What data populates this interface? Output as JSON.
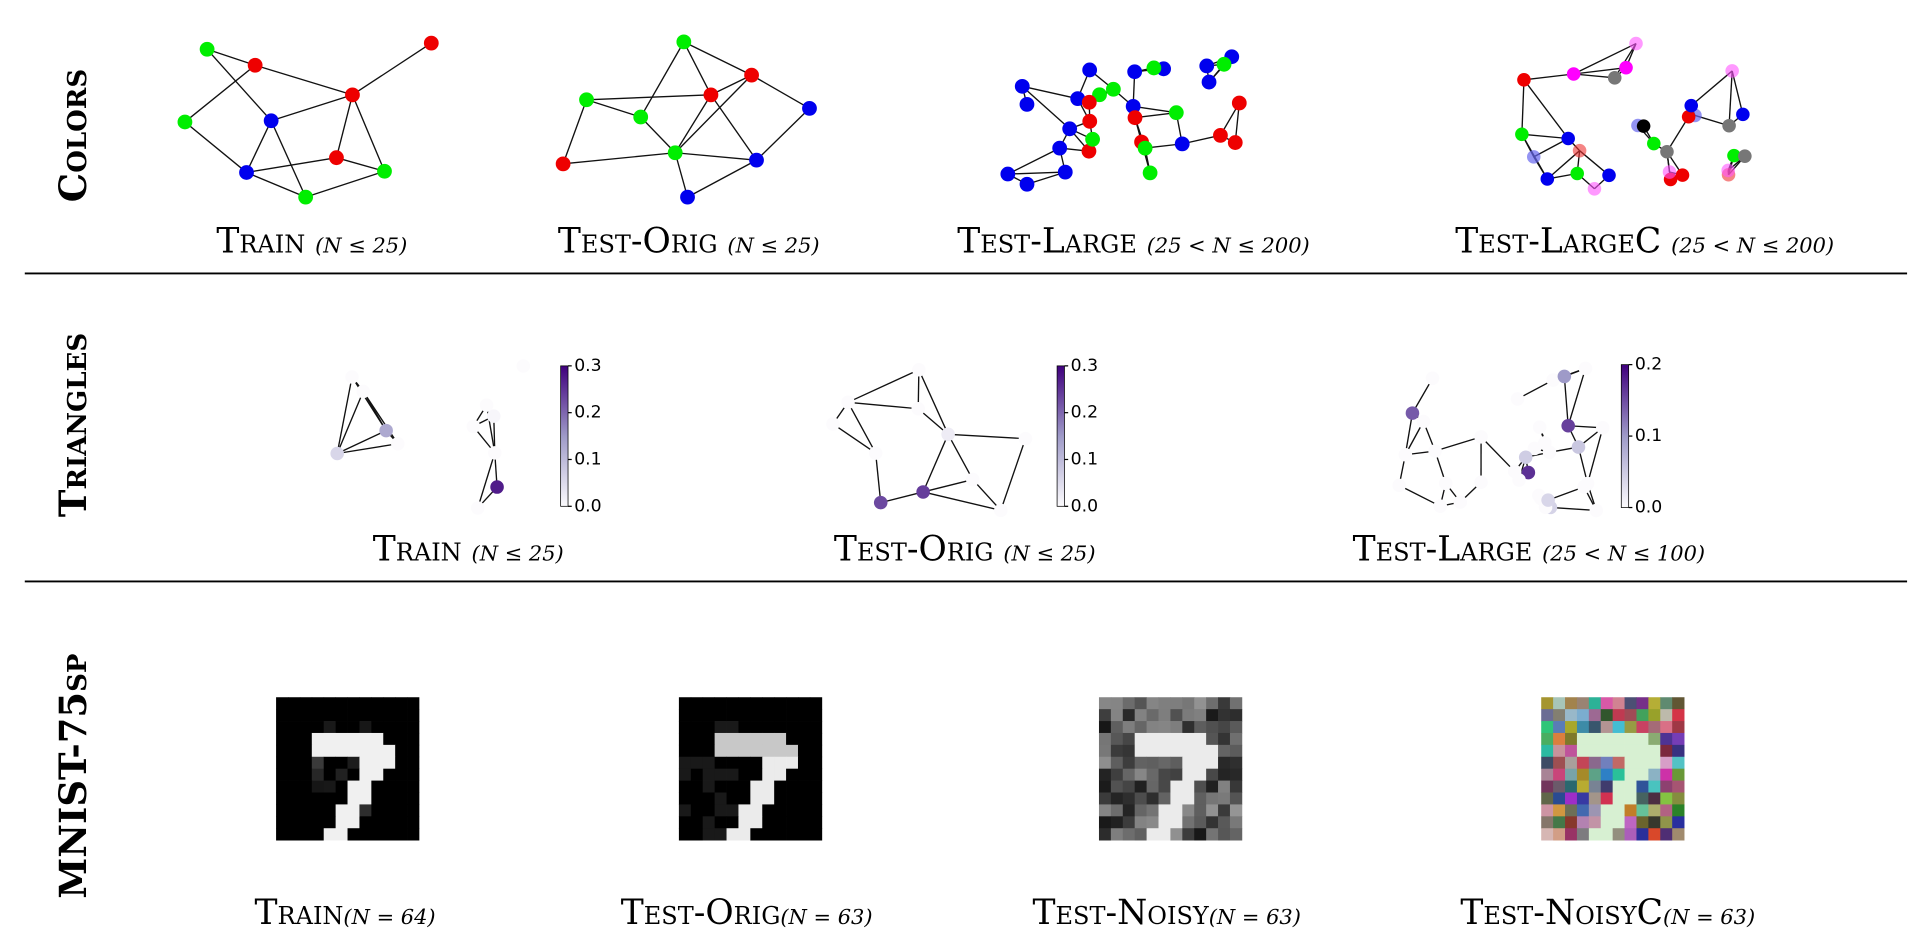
{
  "rows": [
    {
      "label": "Colors",
      "panels": [
        {
          "name": "Train",
          "range": "(N ≤ 25)"
        },
        {
          "name": "Test-Orig",
          "range": "(N ≤ 25)"
        },
        {
          "name": "Test-Large",
          "range": "(25 < N ≤ 200)"
        },
        {
          "name": "Test-LargeC",
          "range": "(25 < N ≤ 200)"
        }
      ]
    },
    {
      "label": "Triangles",
      "panels": [
        {
          "name": "Train",
          "range": "(N ≤ 25)",
          "colorbar": [
            "0.3",
            "0.2",
            "0.1",
            "0.0"
          ]
        },
        {
          "name": "Test-Orig",
          "range": "(N ≤ 25)",
          "colorbar": [
            "0.3",
            "0.2",
            "0.1",
            "0.0"
          ]
        },
        {
          "name": "Test-Large",
          "range": "(25 < N ≤ 100)",
          "colorbar": [
            "0.2",
            "0.1",
            "0.0"
          ]
        }
      ]
    },
    {
      "label": "MNIST-75sp",
      "panels": [
        {
          "name": "Train",
          "range": "(N = 64)"
        },
        {
          "name": "Test-Orig",
          "range": "(N = 63)"
        },
        {
          "name": "Test-Noisy",
          "range": "(N = 63)"
        },
        {
          "name": "Test-NoisyC",
          "range": "(N = 63)"
        }
      ]
    }
  ]
}
